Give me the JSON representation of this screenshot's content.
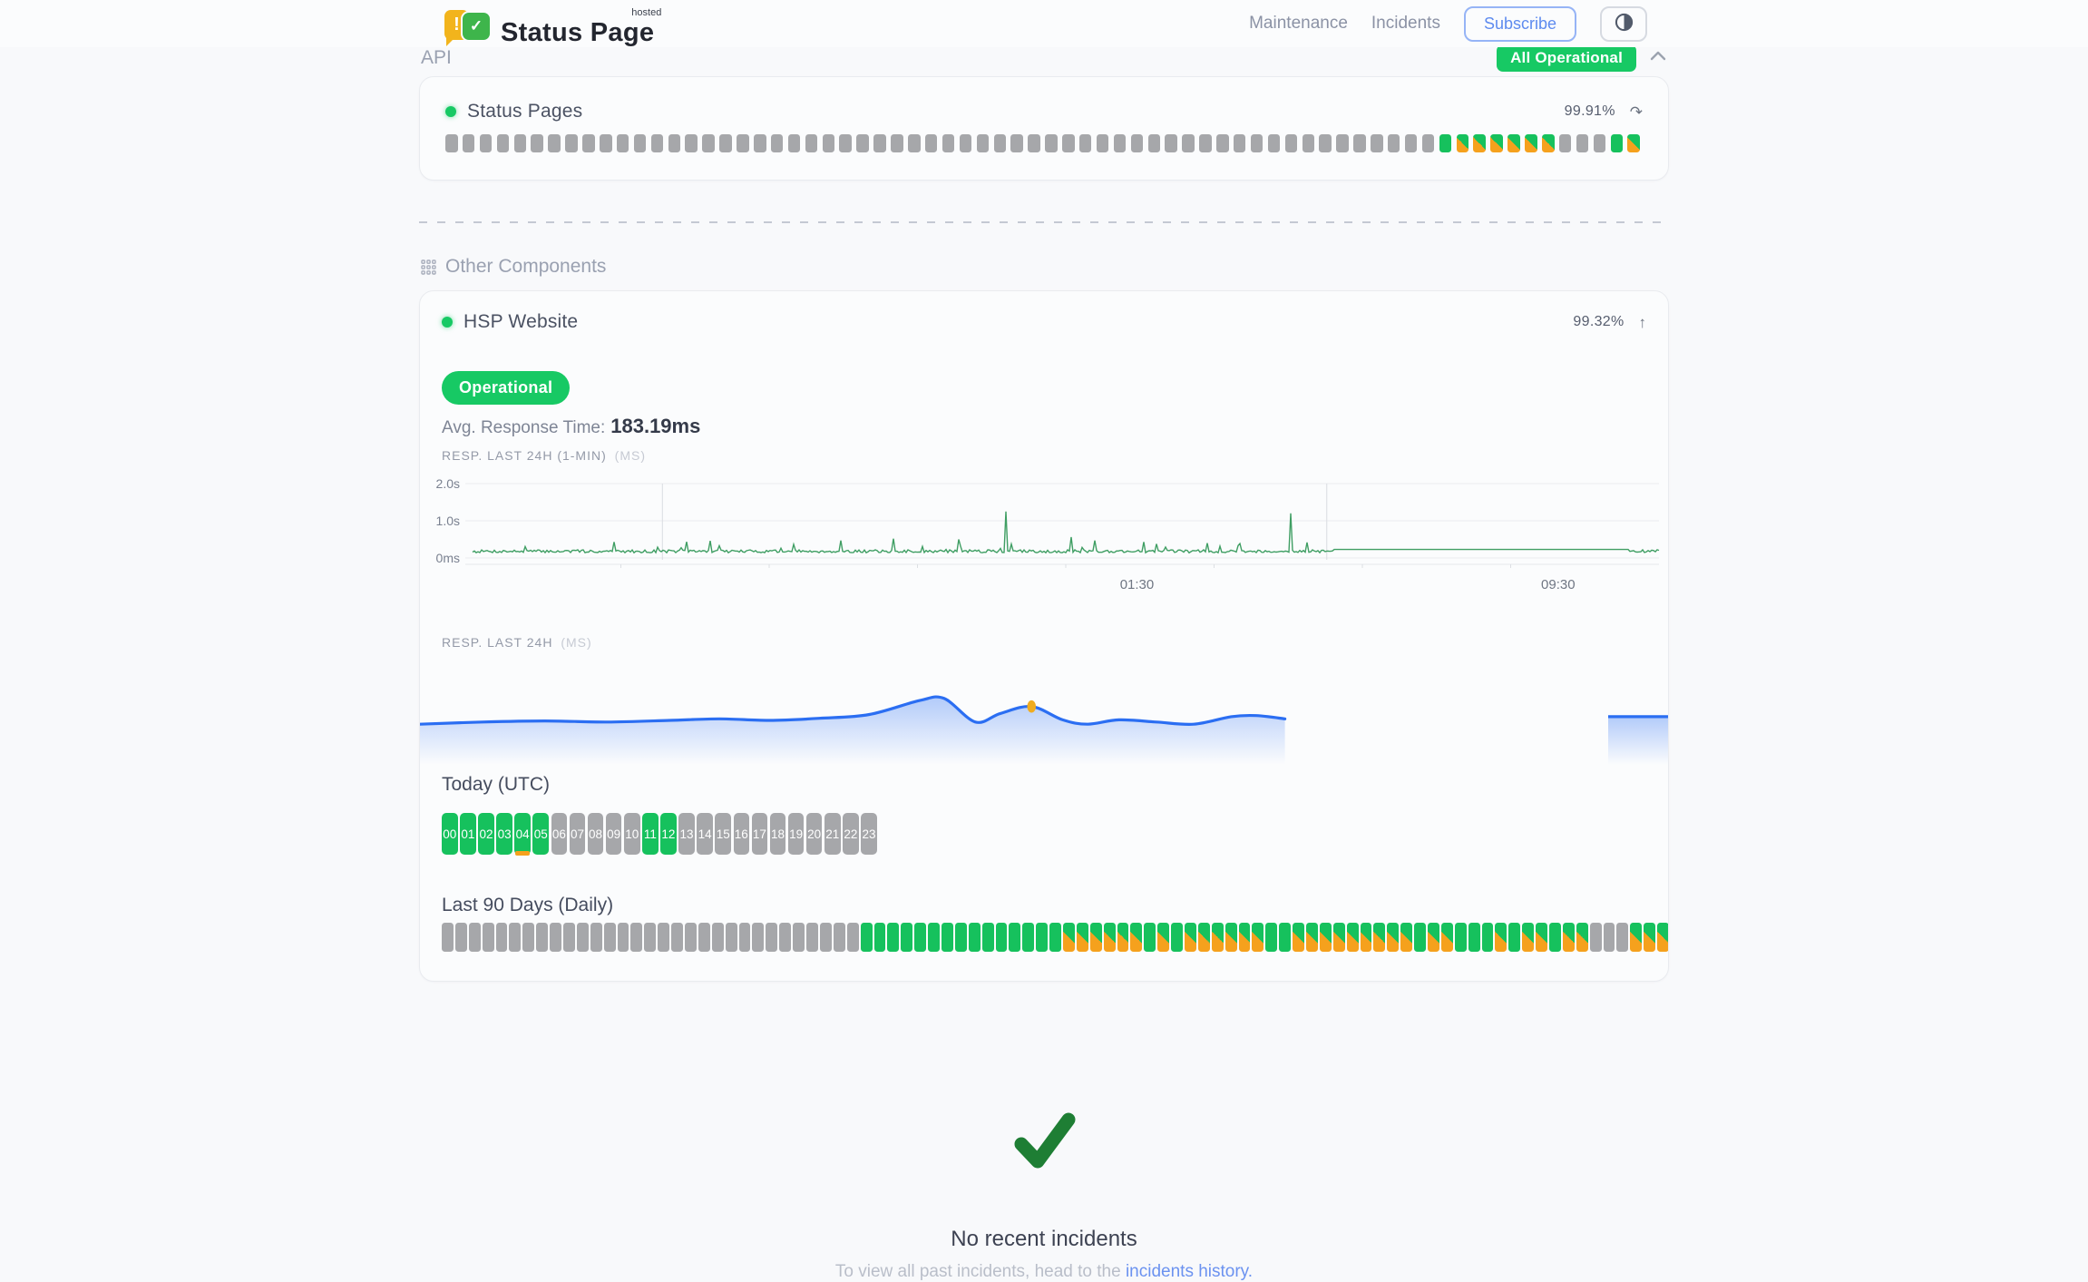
{
  "colors": {
    "green": "#16c15d",
    "orange": "#f5a11d",
    "gray_bar": "#a6a7aa",
    "badge_green": "#17c964",
    "chart_green": "#3f9e63",
    "chart_blue": "#2b6ef2",
    "link_blue": "#6b92f0",
    "check_green": "#1e7e34",
    "highlight_dot": "#f0ac1f"
  },
  "header": {
    "logo_title": "Status Page",
    "logo_superscript": "hosted",
    "logo_exclamation": "!",
    "logo_check": "✓",
    "nav": [
      {
        "label": "Maintenance"
      },
      {
        "label": "Incidents"
      }
    ],
    "subscribe_label": "Subscribe",
    "theme_toggle_icon": "contrast-half-circle",
    "status_badge": "All Operational"
  },
  "legend": {
    "n": "no-data",
    "u": "operational",
    "p": "degraded-partial"
  },
  "api_section": {
    "title": "API",
    "component_name": "Status Pages",
    "uptime": "99.91%",
    "refresh_icon": "↷",
    "bars": "nnnnnnnnnnnnnnnnnnnnnnnnnnnnnnnnnnnnnnnnnnnnnnnnnnnnnnnnnnuppppppnnnup"
  },
  "other_section": {
    "title": "Other Components",
    "component_name": "HSP Website",
    "uptime": "99.32%",
    "expand_icon": "↑",
    "status_badge": "Operational",
    "avg_label": "Avg. Response Time:",
    "avg_value": "183.19ms",
    "chart1_label": "RESP. LAST 24H (1-MIN)",
    "chart1_unit": "(MS)",
    "chart2_label": "RESP. LAST 24H",
    "chart2_unit": "(MS)",
    "today_label": "Today (UTC)",
    "hours": [
      {
        "t": "00",
        "s": "u",
        "m": false
      },
      {
        "t": "01",
        "s": "u",
        "m": false
      },
      {
        "t": "02",
        "s": "u",
        "m": false
      },
      {
        "t": "03",
        "s": "u",
        "m": false
      },
      {
        "t": "04",
        "s": "u",
        "m": true
      },
      {
        "t": "05",
        "s": "u",
        "m": false
      },
      {
        "t": "06",
        "s": "n",
        "m": false
      },
      {
        "t": "07",
        "s": "n",
        "m": false
      },
      {
        "t": "08",
        "s": "n",
        "m": false
      },
      {
        "t": "09",
        "s": "n",
        "m": false
      },
      {
        "t": "10",
        "s": "n",
        "m": false
      },
      {
        "t": "11",
        "s": "u",
        "m": false
      },
      {
        "t": "12",
        "s": "u",
        "m": false
      },
      {
        "t": "13",
        "s": "n",
        "m": false
      },
      {
        "t": "14",
        "s": "n",
        "m": false
      },
      {
        "t": "15",
        "s": "n",
        "m": false
      },
      {
        "t": "16",
        "s": "n",
        "m": false
      },
      {
        "t": "17",
        "s": "n",
        "m": false
      },
      {
        "t": "18",
        "s": "n",
        "m": false
      },
      {
        "t": "19",
        "s": "n",
        "m": false
      },
      {
        "t": "20",
        "s": "n",
        "m": false
      },
      {
        "t": "21",
        "s": "n",
        "m": false
      },
      {
        "t": "22",
        "s": "n",
        "m": false
      },
      {
        "t": "23",
        "s": "n",
        "m": false
      }
    ],
    "daily_label": "Last 90 Days (Daily)",
    "daily_bars": "nnnnnnnnnnnnnnnnnnnnnnnnnnnnnnnuuuuuuuuuuuuuuuppppppupuppppppuupppppppppuppuuupuppuppnnnppp"
  },
  "footer": {
    "title": "No recent incidents",
    "subtitle_prefix": "To view all past incidents, head to the ",
    "link_text": "incidents history."
  },
  "chart_data": [
    {
      "type": "line",
      "title": "RESP. LAST 24H (1-MIN) (MS)",
      "y_max_ms": 2000,
      "y_ticks": [
        {
          "label": "2.0s",
          "ms": 2000
        },
        {
          "label": "1.0s",
          "ms": 1000
        },
        {
          "label": "0ms",
          "ms": 0
        }
      ],
      "x_ticks": [
        {
          "label": "01:30",
          "pos": 0.56
        },
        {
          "label": "09:30",
          "pos": 0.915
        }
      ],
      "baseline_ms": 180,
      "noise_ms": 80,
      "spikes": [
        {
          "pos": 0.45,
          "ms": 1250
        },
        {
          "pos": 0.69,
          "ms": 1200
        }
      ],
      "mid_spikes": [
        {
          "pos": 0.12,
          "ms": 430
        },
        {
          "pos": 0.2,
          "ms": 460
        },
        {
          "pos": 0.31,
          "ms": 470
        },
        {
          "pos": 0.355,
          "ms": 520
        },
        {
          "pos": 0.41,
          "ms": 500
        },
        {
          "pos": 0.505,
          "ms": 560
        },
        {
          "pos": 0.525,
          "ms": 470
        },
        {
          "pos": 0.565,
          "ms": 430
        },
        {
          "pos": 0.62,
          "ms": 400
        }
      ],
      "flat": {
        "from": 0.725,
        "to": 0.975,
        "ms": 230
      },
      "separators": [
        0.16,
        0.72
      ],
      "grid": true,
      "legend": "none"
    },
    {
      "type": "area",
      "title": "RESP. LAST 24H (MS)",
      "x_range": [
        0,
        1
      ],
      "points": [
        [
          0.0,
          0.62
        ],
        [
          0.05,
          0.6
        ],
        [
          0.1,
          0.59
        ],
        [
          0.15,
          0.6
        ],
        [
          0.2,
          0.585
        ],
        [
          0.24,
          0.57
        ],
        [
          0.28,
          0.585
        ],
        [
          0.32,
          0.565
        ],
        [
          0.36,
          0.53
        ],
        [
          0.4,
          0.4
        ],
        [
          0.42,
          0.38
        ],
        [
          0.445,
          0.6
        ],
        [
          0.465,
          0.52
        ],
        [
          0.49,
          0.455
        ],
        [
          0.515,
          0.58
        ],
        [
          0.535,
          0.62
        ],
        [
          0.56,
          0.58
        ],
        [
          0.59,
          0.6
        ],
        [
          0.62,
          0.62
        ],
        [
          0.65,
          0.55
        ],
        [
          0.67,
          0.54
        ],
        [
          0.693,
          0.57
        ]
      ],
      "fragment_points": [
        [
          0.952,
          0.55
        ],
        [
          1.0,
          0.55
        ]
      ],
      "highlight_dot": {
        "x": 0.49,
        "y": 0.455
      },
      "dashed_gap_line": {
        "from": 0.736,
        "to": 0.907,
        "y": 0.82
      },
      "legend": "none"
    }
  ]
}
